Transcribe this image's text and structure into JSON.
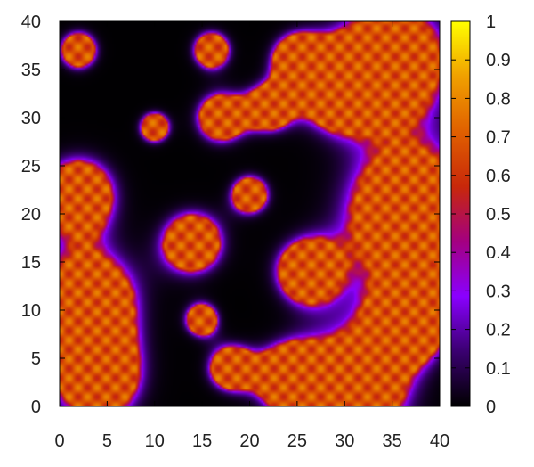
{
  "chart_data": {
    "type": "heatmap",
    "title": "",
    "xlabel": "",
    "ylabel": "",
    "xlim": [
      0,
      40
    ],
    "ylim": [
      0,
      40
    ],
    "x_ticks": [
      "0",
      "5",
      "10",
      "15",
      "20",
      "25",
      "30",
      "35",
      "40"
    ],
    "y_ticks": [
      "0",
      "5",
      "10",
      "15",
      "20",
      "25",
      "30",
      "35",
      "40"
    ],
    "colorbar": {
      "range": [
        0,
        1
      ],
      "ticks": [
        "0",
        "0.1",
        "0.2",
        "0.3",
        "0.4",
        "0.5",
        "0.6",
        "0.7",
        "0.8",
        "0.9",
        "1"
      ],
      "colormap": [
        "#000000",
        "#3a0070",
        "#8a00ff",
        "#a40080",
        "#c8280a",
        "#e06000",
        "#f0a000",
        "#ffff00"
      ]
    },
    "grid": false,
    "field_description": "two-phase pattern: black background (value ~0) with orange/yellow domains (~0.6-0.8) bordered by purple rims (~0.3)",
    "domains": [
      {
        "x": 37,
        "y": 20,
        "r": 5.5
      },
      {
        "x": 35,
        "y": 36,
        "r": 4.5
      },
      {
        "x": 3,
        "y": 11,
        "r": 4
      },
      {
        "x": 2,
        "y": 22,
        "r": 3
      },
      {
        "x": 4,
        "y": 3,
        "r": 3.5
      },
      {
        "x": 31,
        "y": 2,
        "r": 4.5
      },
      {
        "x": 24,
        "y": 3,
        "r": 2.5
      },
      {
        "x": 29,
        "y": 33,
        "r": 3
      },
      {
        "x": 25,
        "y": 36,
        "r": 2
      },
      {
        "x": 14,
        "y": 17,
        "r": 2.5
      },
      {
        "x": 20,
        "y": 22,
        "r": 1.5
      },
      {
        "x": 26,
        "y": 14,
        "r": 2.5
      },
      {
        "x": 18,
        "y": 4,
        "r": 1.8
      },
      {
        "x": 15,
        "y": 9,
        "r": 1.3
      },
      {
        "x": 17,
        "y": 30,
        "r": 2
      },
      {
        "x": 22,
        "y": 31,
        "r": 1.8
      },
      {
        "x": 10,
        "y": 29,
        "r": 1.2
      },
      {
        "x": 2,
        "y": 37,
        "r": 1.5
      },
      {
        "x": 16,
        "y": 37,
        "r": 1.5
      },
      {
        "x": 37,
        "y": 9,
        "r": 3
      }
    ]
  }
}
